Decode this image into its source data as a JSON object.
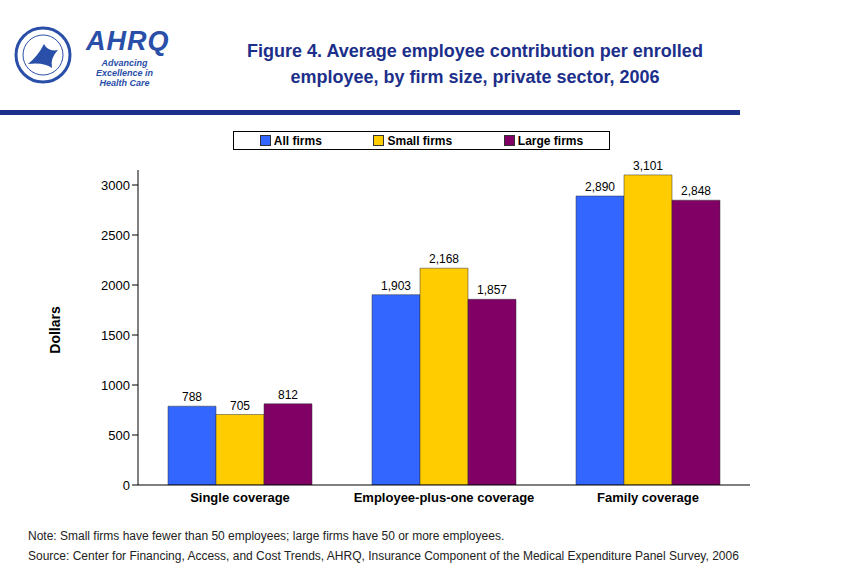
{
  "chart_data": {
    "type": "bar",
    "title": "Figure 4. Average employee contribution per enrolled employee, by firm size, private sector, 2006",
    "logo": "AHRQ",
    "tagline": [
      "Advancing",
      "Excellence in",
      "Health Care"
    ],
    "y_label": "Dollars",
    "categories": [
      "Single coverage",
      "Employee-plus-one coverage",
      "Family coverage"
    ],
    "series": [
      {
        "name": "All firms",
        "color": "#3366ff",
        "values": [
          788,
          1903,
          2890
        ],
        "value_labels": [
          "788",
          "1,903",
          "2,890"
        ]
      },
      {
        "name": "Small firms",
        "color": "#ffcc00",
        "values": [
          705,
          2168,
          3101
        ],
        "value_labels": [
          "705",
          "2,168",
          "3,101"
        ]
      },
      {
        "name": "Large firms",
        "color": "#800066",
        "values": [
          812,
          1857,
          2848
        ],
        "value_labels": [
          "812",
          "1,857",
          "2,848"
        ]
      }
    ],
    "ylim": [
      0,
      3150
    ],
    "yticks": [
      0,
      500,
      1000,
      1500,
      2000,
      2500,
      3000
    ],
    "grid": false,
    "legend": "top",
    "data_labels": true,
    "note": "Note: Small firms have fewer than 50 employees; large firms have 50 or more employees.",
    "source": "Source: Center for Financing, Access, and Cost Trends, AHRQ, Insurance Component of the Medical Expenditure Panel Survey, 2006"
  }
}
